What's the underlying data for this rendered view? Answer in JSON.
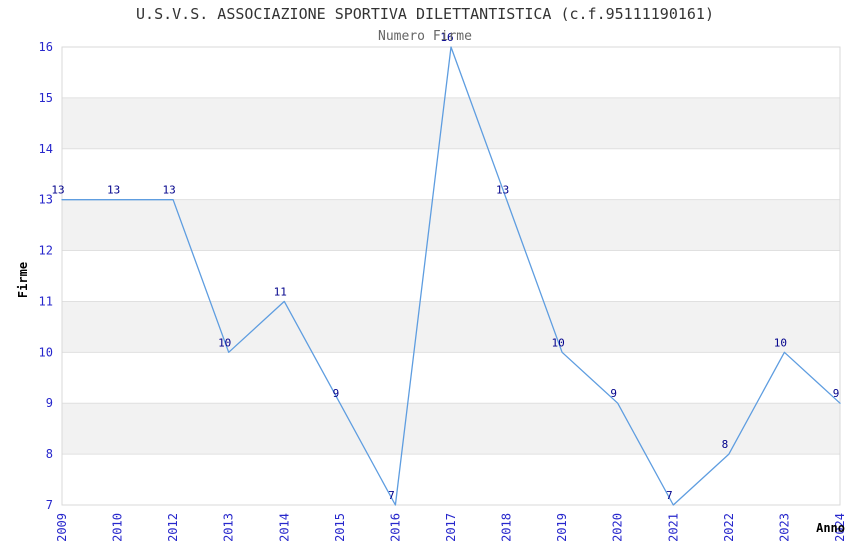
{
  "chart_data": {
    "type": "line",
    "title": "U.S.V.S. ASSOCIAZIONE SPORTIVA DILETTANTISTICA (c.f.95111190161)",
    "subtitle": "Numero Firme",
    "xlabel": "Anno",
    "ylabel": "Firme",
    "categories": [
      "2009",
      "2010",
      "2012",
      "2013",
      "2014",
      "2015",
      "2016",
      "2017",
      "2018",
      "2019",
      "2020",
      "2021",
      "2022",
      "2023",
      "2024"
    ],
    "values": [
      13,
      13,
      13,
      10,
      11,
      9,
      7,
      16,
      13,
      10,
      9,
      7,
      8,
      10,
      9
    ],
    "ylim": [
      7,
      16
    ],
    "yticks": [
      7,
      8,
      9,
      10,
      11,
      12,
      13,
      14,
      15,
      16
    ],
    "grid": true,
    "legend_position": "none",
    "layout_hints": {
      "bands": "alternating horizontal bands, white top band (15-16), gray below (14-15), etc.",
      "x_tick_rotation": "vertical, reading bottom-to-top",
      "data_labels": "value printed above-left of each point"
    },
    "colors": {
      "line": "#5e9de0",
      "tick_label": "#2727cc",
      "data_label": "#00008b",
      "band": "#f2f2f2",
      "grid": "#e0e0e0",
      "border": "#d9d9d9",
      "title": "#333333",
      "subtitle": "#666666",
      "axis_title": "#000000",
      "background": "#ffffff"
    }
  }
}
